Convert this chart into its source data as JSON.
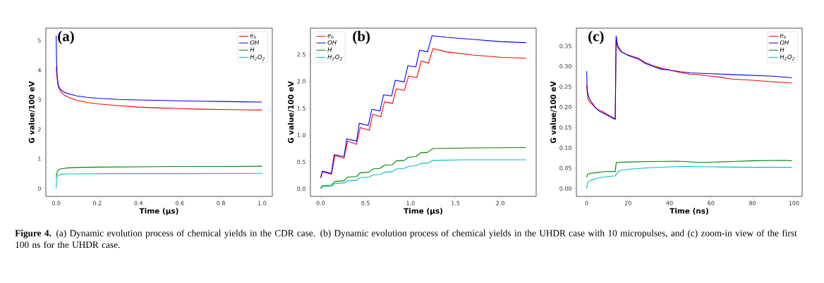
{
  "chart_data": [
    {
      "type": "line",
      "title": "(a)",
      "xlabel": "Time (μs)",
      "ylabel": "G value/100 eV",
      "legend": "top right",
      "xlim": [
        -0.05,
        1.05
      ],
      "ylim": [
        -0.27,
        5.42
      ],
      "xticks": [
        {
          "value": 0,
          "label": "0.0"
        },
        0.2,
        0.4,
        0.6,
        0.8,
        {
          "value": 1,
          "label": "1.0"
        }
      ],
      "yticks": [
        0,
        1,
        2,
        3,
        4,
        5
      ],
      "annotations": [
        "**Figure 4.** (a) Dynamic evolution process of chemical yields in the CDR case. (b) Dynamic evolution process of chemical yields in the UHDR case with 10 micropulses, and (c) zoom-in view of the first 100 ns for the UHDR case."
      ],
      "series": [
        {
          "name": "e$_{h}$",
          "color": "#ff0000",
          "x": [
            0,
            0.005,
            0.01,
            0.02,
            0.04,
            0.07,
            0.1,
            0.15,
            0.2,
            0.3,
            0.4,
            0.5,
            0.6,
            0.7,
            0.8,
            0.9,
            1.0
          ],
          "values": [
            4.1,
            3.7,
            3.45,
            3.3,
            3.15,
            3.05,
            2.98,
            2.91,
            2.86,
            2.8,
            2.75,
            2.72,
            2.7,
            2.68,
            2.67,
            2.66,
            2.65
          ]
        },
        {
          "name": "OH",
          "color": "#0000ff",
          "x": [
            0,
            0.002,
            0.005,
            0.01,
            0.02,
            0.04,
            0.07,
            0.1,
            0.15,
            0.2,
            0.3,
            0.4,
            0.5,
            0.6,
            0.7,
            0.8,
            0.9,
            1.0
          ],
          "values": [
            5.17,
            4.3,
            3.8,
            3.5,
            3.35,
            3.25,
            3.18,
            3.13,
            3.08,
            3.05,
            3.01,
            2.99,
            2.98,
            2.96,
            2.95,
            2.94,
            2.93,
            2.92
          ]
        },
        {
          "name": "H",
          "color": "#008000",
          "x": [
            0,
            0.005,
            0.01,
            0.02,
            0.05,
            0.1,
            0.2,
            0.4,
            0.6,
            0.8,
            1.0
          ],
          "values": [
            0.4,
            0.55,
            0.62,
            0.66,
            0.69,
            0.71,
            0.72,
            0.73,
            0.74,
            0.74,
            0.75
          ]
        },
        {
          "name": "H$_{2}$O$_{2}$",
          "color": "#00bfbf",
          "x": [
            0,
            0.002,
            0.005,
            0.01,
            0.02,
            0.05,
            0.1,
            0.3,
            0.6,
            1.0
          ],
          "values": [
            0.0,
            0.3,
            0.4,
            0.44,
            0.47,
            0.49,
            0.49,
            0.5,
            0.5,
            0.51
          ]
        }
      ]
    },
    {
      "type": "line",
      "title": "(b)",
      "xlabel": "Time (μs)",
      "ylabel": "G value/100 eV",
      "legend": "top left",
      "xlim": [
        -0.114,
        2.399
      ],
      "ylim": [
        -0.14,
        2.99
      ],
      "xticks": [
        {
          "value": 0,
          "label": "0.0"
        },
        0.5,
        {
          "value": 1,
          "label": "1.0"
        },
        1.5,
        {
          "value": 2,
          "label": "2.0"
        }
      ],
      "yticks": [
        {
          "value": 0,
          "label": "0.0"
        },
        0.5,
        {
          "value": 1,
          "label": "1.0"
        },
        1.5,
        {
          "value": 2,
          "label": "2.0"
        },
        2.5
      ],
      "series": [
        {
          "name": "e$_{h}$",
          "color": "#ff0000",
          "x": [
            0,
            0.02,
            0.12,
            0.16,
            0.26,
            0.3,
            0.4,
            0.44,
            0.54,
            0.58,
            0.67,
            0.71,
            0.8,
            0.84,
            0.93,
            0.98,
            1.07,
            1.12,
            1.2,
            1.25,
            1.4,
            1.7,
            2.0,
            2.285
          ],
          "values": [
            0.2,
            0.32,
            0.27,
            0.62,
            0.57,
            0.89,
            0.83,
            1.14,
            1.09,
            1.39,
            1.34,
            1.62,
            1.59,
            1.86,
            1.83,
            2.1,
            2.07,
            2.38,
            2.34,
            2.61,
            2.55,
            2.49,
            2.45,
            2.43
          ]
        },
        {
          "name": "OH",
          "color": "#0000ff",
          "x": [
            0,
            0.02,
            0.12,
            0.15,
            0.26,
            0.29,
            0.4,
            0.43,
            0.53,
            0.57,
            0.66,
            0.7,
            0.79,
            0.83,
            0.93,
            0.97,
            1.06,
            1.1,
            1.19,
            1.24,
            1.4,
            1.7,
            2.0,
            2.285
          ],
          "values": [
            0.22,
            0.33,
            0.29,
            0.64,
            0.6,
            0.93,
            0.89,
            1.22,
            1.18,
            1.48,
            1.45,
            1.75,
            1.73,
            2.02,
            1.99,
            2.29,
            2.27,
            2.58,
            2.55,
            2.85,
            2.82,
            2.78,
            2.74,
            2.72
          ]
        },
        {
          "name": "H",
          "color": "#008000",
          "x": [
            0,
            0.02,
            0.12,
            0.16,
            0.26,
            0.3,
            0.4,
            0.44,
            0.54,
            0.58,
            0.66,
            0.71,
            0.8,
            0.84,
            0.93,
            0.98,
            1.06,
            1.11,
            1.19,
            1.25,
            1.6,
            2.285
          ],
          "values": [
            0.02,
            0.06,
            0.07,
            0.14,
            0.15,
            0.22,
            0.23,
            0.3,
            0.31,
            0.37,
            0.38,
            0.44,
            0.45,
            0.52,
            0.53,
            0.59,
            0.6,
            0.67,
            0.68,
            0.75,
            0.76,
            0.77
          ]
        },
        {
          "name": "H$_{2}$O$_{2}$",
          "color": "#00bfbf",
          "x": [
            0,
            0.02,
            0.12,
            0.16,
            0.26,
            0.3,
            0.4,
            0.44,
            0.54,
            0.58,
            0.66,
            0.71,
            0.8,
            0.84,
            0.93,
            0.98,
            1.06,
            1.11,
            1.19,
            1.25,
            1.6,
            2.285
          ],
          "values": [
            0.0,
            0.04,
            0.05,
            0.1,
            0.11,
            0.15,
            0.16,
            0.21,
            0.22,
            0.26,
            0.27,
            0.31,
            0.32,
            0.37,
            0.38,
            0.42,
            0.43,
            0.47,
            0.48,
            0.53,
            0.54,
            0.54
          ]
        }
      ]
    },
    {
      "type": "line",
      "title": "(c)",
      "xlabel": "Time (ns)",
      "ylabel": "G value/100 eV",
      "legend": "top right",
      "xlim": [
        -4.95,
        103.95
      ],
      "ylim": [
        -0.0196,
        0.394
      ],
      "xticks": [
        0,
        20,
        40,
        60,
        80,
        100
      ],
      "yticks": [
        {
          "value": 0,
          "label": "0.00"
        },
        0.05,
        {
          "value": 0.1,
          "label": "0.10"
        },
        0.15,
        {
          "value": 0.2,
          "label": "0.20"
        },
        0.25,
        {
          "value": 0.3,
          "label": "0.30"
        },
        0.35
      ],
      "series": [
        {
          "name": "e$_{h}$",
          "color": "#ff0000",
          "x": [
            0,
            0.5,
            1,
            3,
            5,
            8,
            10,
            13.8,
            14.2,
            15,
            17,
            20,
            25,
            28,
            32,
            36,
            40,
            45,
            50,
            55,
            60,
            65,
            70,
            80,
            90,
            99
          ],
          "values": [
            0.253,
            0.225,
            0.215,
            0.205,
            0.195,
            0.188,
            0.182,
            0.171,
            0.365,
            0.345,
            0.335,
            0.328,
            0.32,
            0.31,
            0.302,
            0.296,
            0.291,
            0.285,
            0.281,
            0.279,
            0.276,
            0.273,
            0.269,
            0.266,
            0.262,
            0.259
          ]
        },
        {
          "name": "OH",
          "color": "#0000ff",
          "x": [
            0,
            0.3,
            1,
            2,
            4,
            6,
            8,
            10,
            12,
            13.8,
            14.2,
            15,
            17,
            20,
            25,
            28,
            32,
            36,
            40,
            45,
            50,
            60,
            70,
            80,
            90,
            99
          ],
          "values": [
            0.288,
            0.24,
            0.225,
            0.215,
            0.2,
            0.19,
            0.185,
            0.18,
            0.174,
            0.17,
            0.375,
            0.35,
            0.335,
            0.327,
            0.318,
            0.308,
            0.3,
            0.293,
            0.291,
            0.287,
            0.284,
            0.282,
            0.28,
            0.278,
            0.276,
            0.272
          ]
        },
        {
          "name": "H",
          "color": "#008000",
          "x": [
            0,
            0.5,
            2,
            5,
            8,
            13.8,
            14.3,
            20,
            30,
            44,
            55,
            70,
            80,
            95,
            99
          ],
          "values": [
            0.027,
            0.035,
            0.037,
            0.039,
            0.041,
            0.042,
            0.064,
            0.065,
            0.066,
            0.067,
            0.064,
            0.066,
            0.068,
            0.069,
            0.068
          ]
        },
        {
          "name": "H$_{2}$O$_{2}$",
          "color": "#00bfbf",
          "x": [
            0,
            0.5,
            2,
            5,
            8,
            13.8,
            14.3,
            16,
            20,
            30,
            45,
            60,
            80,
            99
          ],
          "values": [
            0.0,
            0.015,
            0.02,
            0.025,
            0.028,
            0.031,
            0.035,
            0.044,
            0.047,
            0.051,
            0.054,
            0.053,
            0.052,
            0.052
          ]
        }
      ]
    }
  ]
}
